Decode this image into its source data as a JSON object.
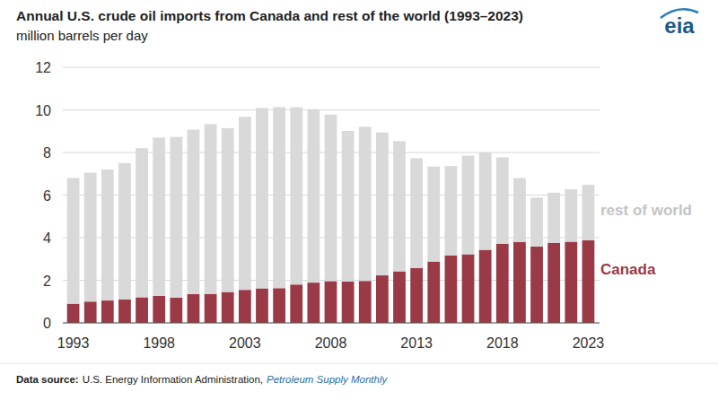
{
  "chart_data": {
    "type": "bar",
    "title": "Annual U.S. crude oil imports from Canada and rest of the world (1993–2023)",
    "subtitle": "million barrels per day",
    "logo": "eia",
    "source": {
      "label": "Data source:",
      "text": "U.S. Energy Information Administration,",
      "publication": "Petroleum Supply Monthly"
    },
    "categories": [
      "1993",
      null,
      null,
      null,
      null,
      "1998",
      null,
      null,
      null,
      null,
      "2003",
      null,
      null,
      null,
      null,
      "2008",
      null,
      null,
      null,
      null,
      "2013",
      null,
      null,
      null,
      null,
      "2018",
      null,
      null,
      null,
      null,
      "2023"
    ],
    "series": [
      {
        "name": "Canada",
        "color": "#9b3a47",
        "values": [
          0.9,
          1.0,
          1.05,
          1.1,
          1.2,
          1.27,
          1.18,
          1.35,
          1.36,
          1.45,
          1.55,
          1.62,
          1.63,
          1.8,
          1.89,
          1.96,
          1.94,
          1.97,
          2.23,
          2.42,
          2.58,
          2.88,
          3.17,
          3.22,
          3.43,
          3.72,
          3.8,
          3.58,
          3.76,
          3.81,
          3.88
        ]
      },
      {
        "name": "rest of world",
        "color": "#d9d9d9",
        "values": [
          5.9,
          6.05,
          6.15,
          6.4,
          7.0,
          7.43,
          7.55,
          7.72,
          7.97,
          7.69,
          8.12,
          8.47,
          8.5,
          8.32,
          8.14,
          7.82,
          7.07,
          7.24,
          6.71,
          6.11,
          5.15,
          4.46,
          4.19,
          4.63,
          4.57,
          4.05,
          3.0,
          2.3,
          2.35,
          2.47,
          2.6
        ]
      }
    ],
    "stacked": true,
    "ylim": [
      0,
      12
    ],
    "yticks": [
      0,
      2,
      4,
      6,
      8,
      10,
      12
    ],
    "grid": true,
    "legend": "right"
  }
}
